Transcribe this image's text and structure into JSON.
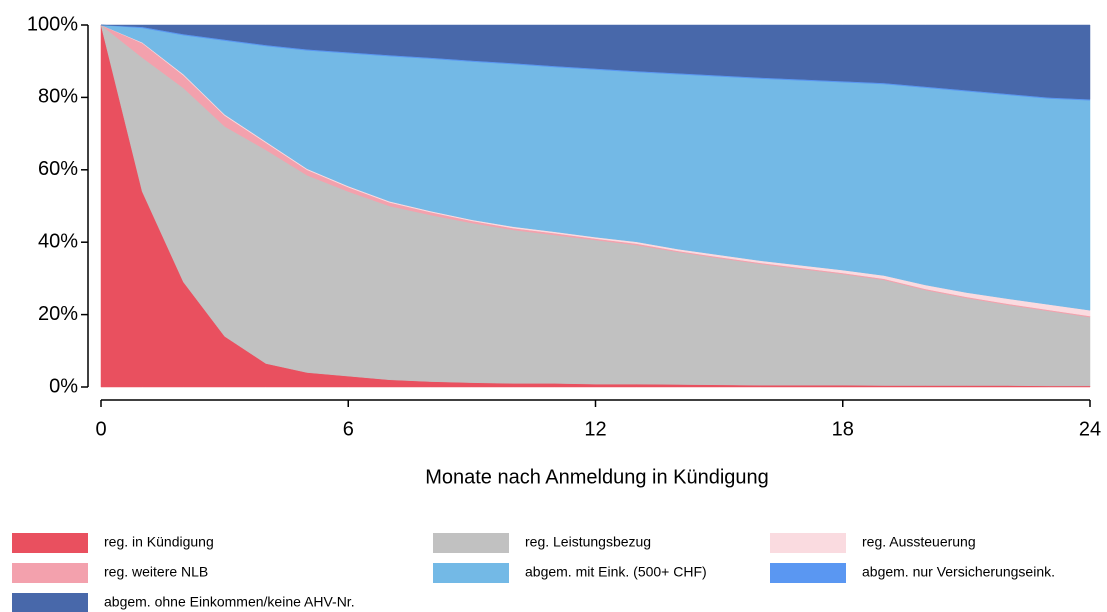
{
  "chart_data": {
    "type": "stacked_area",
    "xlabel": "Monate nach Anmeldung in Kündigung",
    "x": [
      0,
      1,
      2,
      3,
      4,
      5,
      6,
      7,
      8,
      9,
      10,
      11,
      12,
      13,
      14,
      15,
      16,
      17,
      18,
      19,
      20,
      21,
      22,
      23,
      24
    ],
    "xlim": [
      0,
      24
    ],
    "xticks": [
      0,
      6,
      12,
      18,
      24
    ],
    "ylim": [
      0,
      100
    ],
    "yticks": [
      {
        "value": 0,
        "label": "0%"
      },
      {
        "value": 20,
        "label": "20%"
      },
      {
        "value": 40,
        "label": "40%"
      },
      {
        "value": 60,
        "label": "60%"
      },
      {
        "value": 80,
        "label": "80%"
      },
      {
        "value": 100,
        "label": "100%"
      }
    ],
    "series": [
      {
        "name": "reg. in Kündigung",
        "color": "#e9505f",
        "values": [
          100,
          54,
          29,
          14,
          6.5,
          4,
          3,
          2,
          1.5,
          1.2,
          1,
          1,
          0.8,
          0.8,
          0.7,
          0.6,
          0.5,
          0.5,
          0.5,
          0.4,
          0.4,
          0.4,
          0.4,
          0.3,
          0.3
        ]
      },
      {
        "name": "reg. Leistungsbezug",
        "color": "#c1c1c1",
        "values": [
          0,
          37,
          53.6,
          58,
          59,
          54.5,
          51,
          48,
          46,
          44.1,
          42.4,
          41,
          39.8,
          38.4,
          36.6,
          35,
          33.5,
          32.1,
          30.7,
          29.2,
          26.4,
          24.2,
          22.3,
          20.7,
          19
        ]
      },
      {
        "name": "reg. weitere NLB",
        "color": "#f3a1ad",
        "values": [
          0,
          4,
          3.5,
          3,
          2,
          1.5,
          1.2,
          1,
          0.8,
          0.6,
          0.5,
          0.5,
          0.4,
          0.4,
          0.3,
          0.3,
          0.3,
          0.3,
          0.3,
          0.3,
          0.3,
          0.3,
          0.3,
          0.3,
          0.3
        ]
      },
      {
        "name": "reg. Aussteuerung",
        "color": "#fadbe0",
        "values": [
          0,
          0.2,
          0.3,
          0.3,
          0.3,
          0.3,
          0.3,
          0.3,
          0.3,
          0.3,
          0.4,
          0.4,
          0.4,
          0.5,
          0.5,
          0.6,
          0.6,
          0.7,
          0.8,
          0.9,
          1.1,
          1.2,
          1.4,
          1.5,
          1.6
        ]
      },
      {
        "name": "abgem. mit Eink. (500+ CHF)",
        "color": "#73b9e6",
        "values": [
          0,
          4,
          10.8,
          20.4,
          26.4,
          32.7,
          36.7,
          40.1,
          42.1,
          43.7,
          44.9,
          45.5,
          46.3,
          46.9,
          48.3,
          49.3,
          50.3,
          51.1,
          51.9,
          52.9,
          54.5,
          55.6,
          56.3,
          56.9,
          58
        ]
      },
      {
        "name": "abgem. nur Versicherungseink.",
        "color": "#5a97f2",
        "values": [
          0,
          0.3,
          0.3,
          0.3,
          0.3,
          0.3,
          0.3,
          0.3,
          0.3,
          0.3,
          0.3,
          0.3,
          0.3,
          0.3,
          0.3,
          0.3,
          0.3,
          0.3,
          0.3,
          0.3,
          0.3,
          0.3,
          0.3,
          0.3,
          0.3
        ]
      },
      {
        "name": "abgem. ohne Einkommen/keine AHV-Nr.",
        "color": "#4868aa",
        "values": [
          0,
          0.5,
          2.5,
          4,
          5.5,
          6.7,
          7.5,
          8.3,
          9,
          9.8,
          10.5,
          11.3,
          12,
          12.7,
          13.3,
          13.9,
          14.5,
          15,
          15.5,
          16,
          17,
          18,
          19,
          20,
          20.5
        ]
      }
    ]
  }
}
